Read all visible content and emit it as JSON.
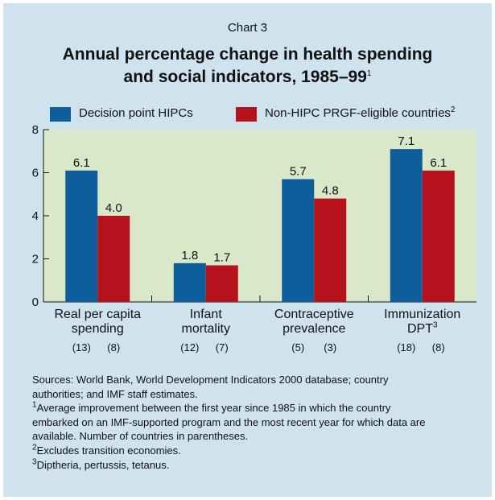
{
  "chart_label": "Chart 3",
  "title_line1": "Annual percentage change in health spending",
  "title_line2": "and social indicators, 1985–99",
  "title_sup": "1",
  "colors": {
    "panel": "#cfe3ee",
    "plot": "#d9e8c9",
    "hipc": "#0d5e9b",
    "nonhipc": "#b5121b"
  },
  "legend": [
    {
      "label": "Decision point HIPCs",
      "sup": ""
    },
    {
      "label": "Non-HIPC PRGF-eligible countries",
      "sup": "2"
    }
  ],
  "categories": [
    {
      "line1": "Real per capita",
      "line2": "spending",
      "sup": "",
      "count_a": "(13)",
      "count_b": "(8)"
    },
    {
      "line1": "Infant",
      "line2": "mortality",
      "sup": "",
      "count_a": "(12)",
      "count_b": "(7)"
    },
    {
      "line1": "Contraceptive",
      "line2": "prevalence",
      "sup": "",
      "count_a": "(5)",
      "count_b": "(3)"
    },
    {
      "line1": "Immunization",
      "line2": "DPT",
      "sup": "3",
      "count_a": "(18)",
      "count_b": "(8)"
    }
  ],
  "chart_data": {
    "type": "bar",
    "categories": [
      "Real per capita spending",
      "Infant mortality",
      "Contraceptive prevalence",
      "Immunization DPT"
    ],
    "series": [
      {
        "name": "Decision point HIPCs",
        "values": [
          6.1,
          1.8,
          5.7,
          7.1
        ],
        "labels": [
          "6.1",
          "1.8",
          "5.7",
          "7.1"
        ]
      },
      {
        "name": "Non-HIPC PRGF-eligible countries",
        "values": [
          4.0,
          1.7,
          4.8,
          6.1
        ],
        "labels": [
          "4.0",
          "1.7",
          "4.8",
          "6.1"
        ]
      }
    ],
    "ylim": [
      0,
      8
    ],
    "yticks": [
      0,
      2,
      4,
      6,
      8
    ],
    "ytick_labels": [
      "0",
      "2",
      "4",
      "6",
      "8"
    ],
    "grid": false,
    "legend_position": "top"
  },
  "footnotes": [
    {
      "sup": "",
      "text": "Sources: World Bank, World Development Indicators 2000 database; country"
    },
    {
      "sup": "",
      "text": "authorities; and IMF staff estimates."
    },
    {
      "sup": "1",
      "text": "Average improvement between the first year since 1985 in which the country"
    },
    {
      "sup": "",
      "text": "embarked on an IMF-supported program and the most recent year for which data are"
    },
    {
      "sup": "",
      "text": "available. Number of countries in parentheses."
    },
    {
      "sup": "2",
      "text": "Excludes transition economies."
    },
    {
      "sup": "3",
      "text": "Diptheria, pertussis, tetanus."
    }
  ]
}
